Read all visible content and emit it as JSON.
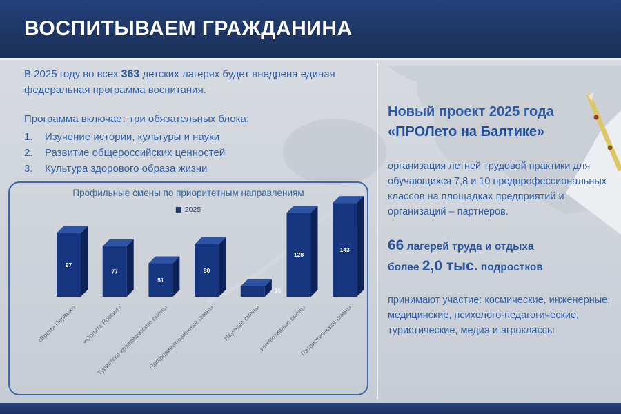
{
  "header": {
    "title": "ВОСПИТЫВАЕМ ГРАЖДАНИНА"
  },
  "left": {
    "intro": {
      "pre": "В 2025 году во всех ",
      "number": "363",
      "post": " детских лагерях будет внедрена единая федеральная программа воспитания."
    },
    "program_heading": "Программа включает три обязательных блока:",
    "program_items": [
      {
        "n": "1.",
        "label": "Изучение истории, культуры и науки"
      },
      {
        "n": "2.",
        "label": "Развитие общероссийских ценностей"
      },
      {
        "n": "3.",
        "label": "Культура здорового образа жизни"
      }
    ]
  },
  "chart_data": {
    "type": "bar",
    "title": "Профильные смены по приоритетным направлениям",
    "legend": [
      "2025"
    ],
    "legend_position": "top",
    "categories": [
      "«Время Первых»",
      "«Орлята России»",
      "Туристско-краеведческие смены",
      "Профориентационные смены",
      "Научные смены",
      "Инклюзивные смены",
      "Патриотические смены"
    ],
    "values": [
      97,
      77,
      51,
      80,
      16,
      128,
      143
    ],
    "ylim": [
      0,
      150
    ],
    "grid": false,
    "axes_visible": false,
    "style": "3d-column"
  },
  "right": {
    "heading_line1": "Новый проект 2025 года",
    "heading_line2": "«ПРОЛето на Балтике»",
    "body1": "организация летней трудовой практики для обучающихся 7,8 и 10 предпрофессиональных классов на площадках предприятий и организаций – партнеров.",
    "stat1": {
      "number": "66",
      "text": " лагерей труда и отдыха"
    },
    "stat2": {
      "pre": "более ",
      "number": "2,0 тыс.",
      "post": " подростков"
    },
    "body2": "принимают участие: космические, инженерные, медицинские, психолого-педагогические, туристические, медиа и агроклассы"
  },
  "colors": {
    "header_bg": "#1f3864",
    "text_blue": "#3160a9",
    "bar_front": "#15357e",
    "bar_top": "#2d54a4",
    "bar_side": "#0d2257",
    "bar_label": "#ffffff",
    "category_label": "#616d7c"
  }
}
